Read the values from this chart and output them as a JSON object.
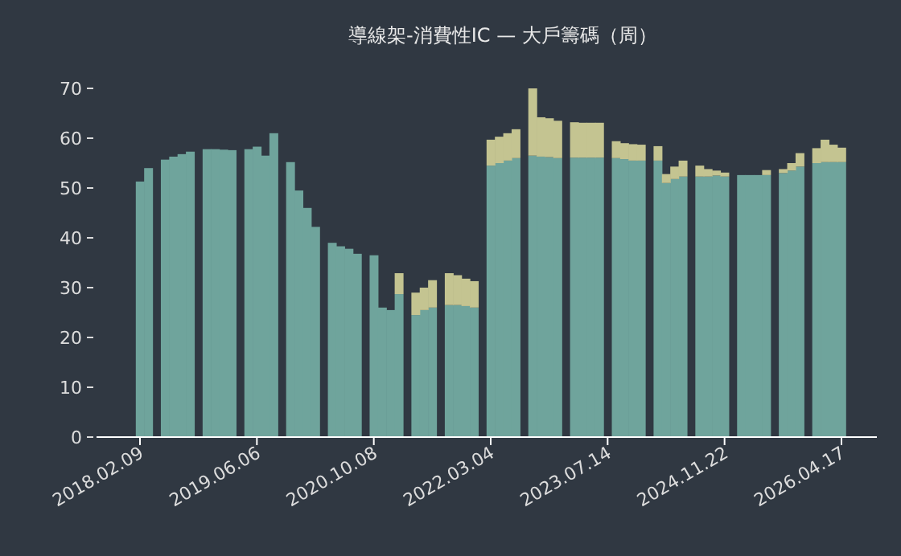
{
  "chart_data": {
    "type": "bar",
    "title": "導線架-消費性IC — 大戶籌碼（周）",
    "stacked": true,
    "categories": [
      "2018.02.09",
      null,
      null,
      null,
      null,
      null,
      null,
      null,
      null,
      null,
      null,
      null,
      null,
      null,
      "2019.06.06",
      null,
      null,
      null,
      null,
      null,
      null,
      null,
      null,
      null,
      null,
      null,
      null,
      null,
      "2020.10.08",
      null,
      null,
      null,
      null,
      null,
      null,
      null,
      null,
      null,
      null,
      null,
      null,
      null,
      "2022.03.04",
      null,
      null,
      null,
      null,
      null,
      null,
      null,
      null,
      null,
      null,
      null,
      null,
      null,
      "2023.07.14",
      null,
      null,
      null,
      null,
      null,
      null,
      null,
      null,
      null,
      null,
      null,
      null,
      null,
      "2024.11.22",
      null,
      null,
      null,
      null,
      null,
      null,
      null,
      null,
      null,
      null,
      null,
      null,
      null,
      "2026.04.17"
    ],
    "series": [
      {
        "color": "#6fa49c",
        "values": [
          51.3,
          54.0,
          null,
          55.7,
          56.3,
          56.8,
          57.3,
          null,
          57.8,
          57.8,
          57.7,
          57.6,
          null,
          57.8,
          58.3,
          56.5,
          61.0,
          null,
          55.2,
          49.5,
          46.0,
          42.2,
          null,
          39.0,
          38.3,
          37.8,
          36.8,
          null,
          36.5,
          26.0,
          25.5,
          28.7,
          null,
          24.5,
          25.5,
          26.0,
          null,
          26.5,
          26.5,
          26.3,
          26.0,
          null,
          54.5,
          55.0,
          55.5,
          56.0,
          null,
          56.5,
          56.3,
          56.2,
          56.0,
          null,
          56.1,
          56.1,
          56.1,
          56.1,
          null,
          56.0,
          55.8,
          55.5,
          55.5,
          null,
          55.5,
          51.0,
          51.8,
          52.3,
          null,
          52.3,
          52.3,
          52.5,
          52.3,
          null,
          52.6,
          52.6,
          52.6,
          52.6,
          null,
          53.0,
          53.5,
          54.3,
          null,
          55.0,
          55.2,
          55.2,
          55.2
        ]
      },
      {
        "color": "#c4c491",
        "values": [
          0,
          0,
          null,
          0,
          0,
          0,
          0,
          null,
          0,
          0,
          0,
          0,
          null,
          0,
          0,
          0,
          0,
          null,
          0,
          0,
          0,
          0,
          null,
          0,
          0,
          0,
          0,
          null,
          0,
          0,
          0,
          4.2,
          null,
          4.5,
          4.5,
          5.5,
          null,
          6.4,
          6.0,
          5.5,
          5.3,
          null,
          5.2,
          5.3,
          5.5,
          5.8,
          null,
          13.5,
          7.9,
          7.8,
          7.5,
          null,
          7.1,
          7.0,
          7.0,
          7.0,
          null,
          3.4,
          3.2,
          3.3,
          3.2,
          null,
          2.9,
          1.8,
          2.5,
          3.2,
          null,
          2.2,
          1.5,
          1.0,
          0.8,
          null,
          0,
          0,
          0,
          1.0,
          null,
          0.8,
          1.5,
          2.7,
          null,
          3.0,
          4.5,
          3.5,
          2.9
        ]
      }
    ],
    "ylim": [
      0,
      70
    ],
    "yticks": [
      0,
      10,
      20,
      30,
      40,
      50,
      60,
      70
    ]
  }
}
